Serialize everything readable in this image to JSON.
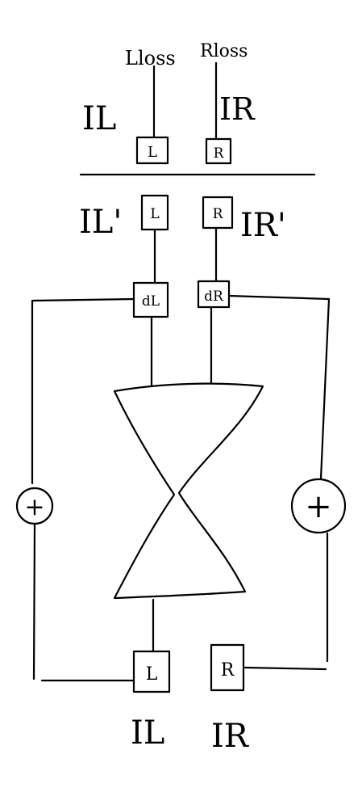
{
  "top": {
    "loss_left": "Lloss",
    "loss_right": "Rloss",
    "image_left": "IL",
    "image_right": "IR",
    "box_left": "L",
    "box_right": "R"
  },
  "middle": {
    "image_left_prime": "IL'",
    "image_right_prime": "IR'",
    "box_left": "L",
    "box_right": "R",
    "delta_left": "dL",
    "delta_right": "dR"
  },
  "side": {
    "adder_left": "+",
    "adder_right": "+"
  },
  "bottom": {
    "box_left": "L",
    "box_right": "R",
    "image_left": "IL",
    "image_right": "IR"
  }
}
